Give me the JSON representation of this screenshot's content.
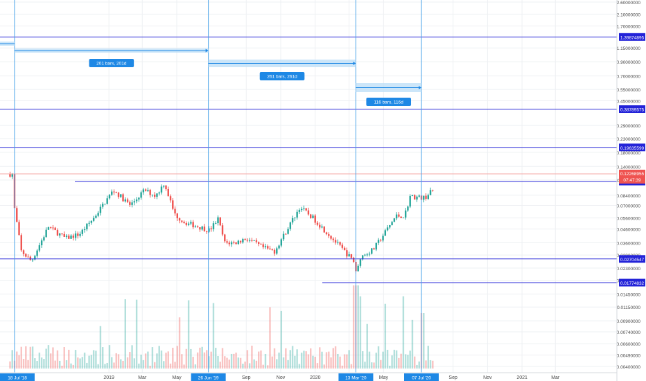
{
  "colors": {
    "background": "#ffffff",
    "grid": "#eef0f3",
    "up": "#26a69a",
    "down": "#ef5350",
    "hline": "#2a2ad8",
    "vline": "#4aa3e8",
    "range_fill": "#bfe0f8",
    "badge": "#1e88e5",
    "price_badge": "#2323d8",
    "last_price": "#ef5350",
    "axis_text": "#4a4a4a"
  },
  "chart_data": {
    "type": "candlestick",
    "y_scale": "log",
    "ylim": [
      0.0038,
      3.0
    ],
    "y_ticks": [
      "2.60000000",
      "2.10000000",
      "1.70000000",
      "1.15000000",
      "0.90000000",
      "0.70000000",
      "0.55000000",
      "0.45000000",
      "0.29000000",
      "0.23000000",
      "0.18000000",
      "0.14000000",
      "0.11000000",
      "0.08400000",
      "0.07000000",
      "0.05600000",
      "0.04600000",
      "0.03600000",
      "0.02900000",
      "0.02300000",
      "0.01850000",
      "0.01450000",
      "0.01150000",
      "0.00900000",
      "0.00740000",
      "0.00600000",
      "0.00490000",
      "0.00400000"
    ],
    "x_ticks": [
      "8",
      "2019",
      "Mar",
      "May",
      "Sep",
      "Nov",
      "2020",
      "Mar",
      "May",
      "Sep",
      "Nov",
      "2021",
      "Mar"
    ],
    "date_markers": [
      "18 Jul '18",
      "26 Jun '19",
      "13 Mar '20",
      "07 Jul '20"
    ],
    "horizontal_levels": [
      "1.39874895",
      "0.38789575",
      "0.19635599",
      "0.10705057",
      "0.02704547",
      "0.01774832"
    ],
    "last_price": {
      "value": "0.12268955",
      "countdown": "07:47:39"
    },
    "ranges": [
      "201 bars, 201d",
      "261 bars, 261d",
      "116 bars, 116d"
    ],
    "grid": true,
    "legend": "none"
  }
}
